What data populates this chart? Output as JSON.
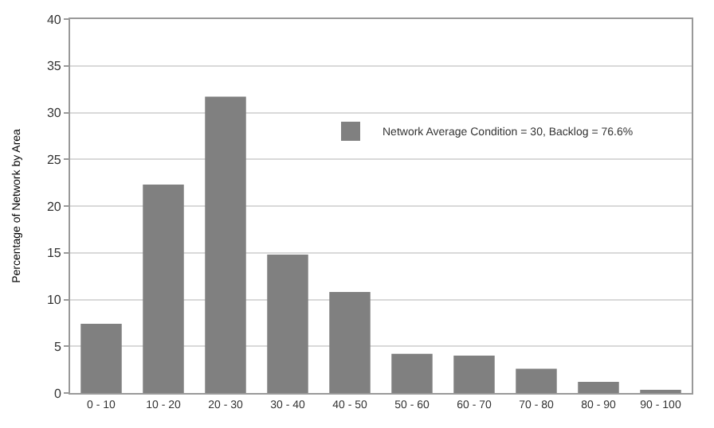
{
  "chart_data": {
    "type": "bar",
    "ylabel": "Percentage of Network by Area",
    "categories": [
      "0 - 10",
      "10 - 20",
      "20 - 30",
      "30 - 40",
      "40 - 50",
      "50 - 60",
      "60 - 70",
      "70 - 80",
      "80 - 90",
      "90 - 100"
    ],
    "series": [
      {
        "name": "Network Average Condition = 30, Backlog = 76.6%",
        "color": "#808080",
        "values": [
          7.4,
          22.3,
          31.7,
          14.8,
          10.8,
          4.2,
          4.0,
          2.6,
          1.2,
          0.3
        ]
      }
    ],
    "ylim": [
      0,
      40
    ],
    "yticks": [
      0,
      5,
      10,
      15,
      20,
      25,
      30,
      35,
      40
    ],
    "grid": "y",
    "legend": "top right"
  }
}
